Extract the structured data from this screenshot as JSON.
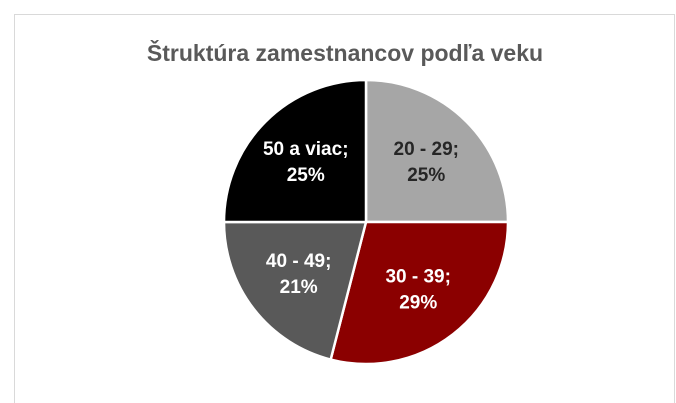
{
  "chart_data": {
    "type": "pie",
    "title": "Štruktúra zamestnancov podľa veku",
    "categories": [
      "20 - 29",
      "30 - 39",
      "40 - 49",
      "50 a viac"
    ],
    "separator": ";",
    "values": [
      25,
      29,
      21,
      25
    ],
    "value_labels": [
      "25%",
      "29%",
      "21%",
      "25%"
    ],
    "colors": [
      "#a6a6a6",
      "#8b0000",
      "#595959",
      "#000000"
    ]
  }
}
